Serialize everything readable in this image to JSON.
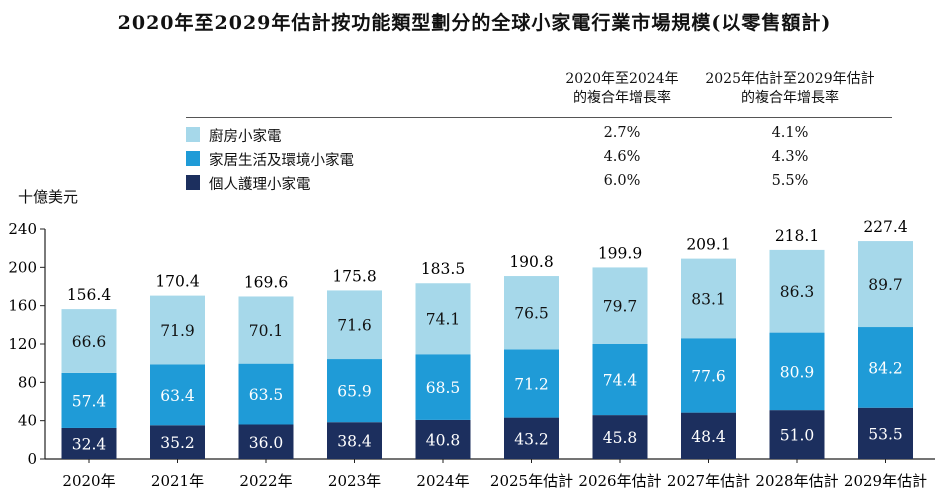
{
  "title": "2020年至2029年估計按功能類型劃分的全球小家電行業市場規模(以零售額計)",
  "table": {
    "col1_header": [
      "2020年至2024年",
      "的複合年增長率"
    ],
    "col2_header": [
      "2025年估計至2029年估計",
      "的複合年增長率"
    ],
    "rows": [
      {
        "label": "廚房小家電",
        "cagr1": "2.7%",
        "cagr2": "4.1%"
      },
      {
        "label": "家居生活及環境小家電",
        "cagr1": "4.6%",
        "cagr2": "4.3%"
      },
      {
        "label": "個人護理小家電",
        "cagr1": "6.0%",
        "cagr2": "5.5%"
      }
    ]
  },
  "chart_data": {
    "type": "bar",
    "stacked": true,
    "ylabel": "十億美元",
    "ylim": [
      0,
      240
    ],
    "yticks": [
      0,
      40,
      80,
      120,
      160,
      200,
      240
    ],
    "categories": [
      "2020年",
      "2021年",
      "2022年",
      "2023年",
      "2024年",
      "2025年估計",
      "2026年估計",
      "2027年估計",
      "2028年估計",
      "2029年估計"
    ],
    "series": [
      {
        "name": "個人護理小家電",
        "color": "#1c2f5e",
        "label_color": "#ffffff",
        "values": [
          32.4,
          35.2,
          36.0,
          38.4,
          40.8,
          43.2,
          45.8,
          48.4,
          51.0,
          53.5
        ]
      },
      {
        "name": "家居生活及環境小家電",
        "color": "#1f9bd7",
        "label_color": "#ffffff",
        "values": [
          57.4,
          63.4,
          63.5,
          65.9,
          68.5,
          71.2,
          74.4,
          77.6,
          80.9,
          84.2
        ]
      },
      {
        "name": "廚房小家電",
        "color": "#a6d8ea",
        "label_color": "#111111",
        "values": [
          66.6,
          71.9,
          70.1,
          71.6,
          74.1,
          76.5,
          79.7,
          83.1,
          86.3,
          89.7
        ]
      }
    ],
    "totals": [
      156.4,
      170.4,
      169.6,
      175.8,
      183.5,
      190.8,
      199.9,
      209.1,
      218.1,
      227.4
    ],
    "grid": false,
    "legend": "top-left"
  }
}
